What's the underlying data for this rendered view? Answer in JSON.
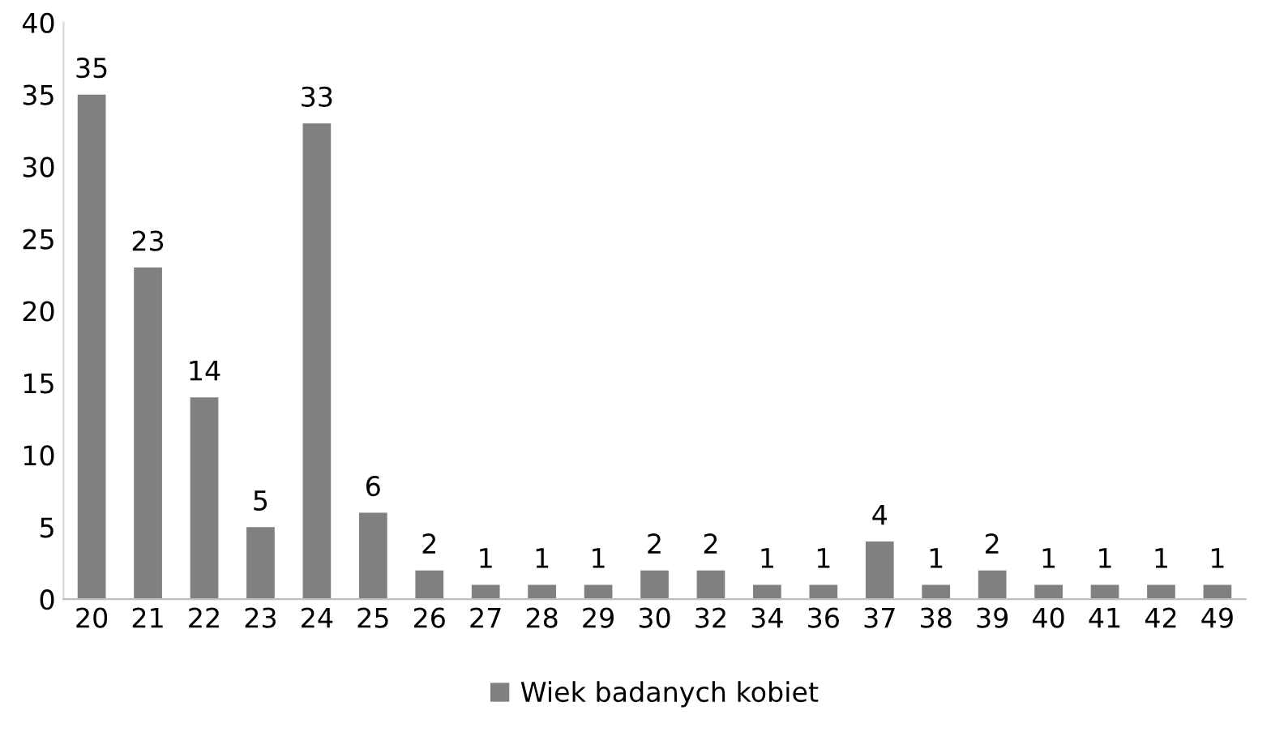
{
  "chart_data": {
    "type": "bar",
    "categories": [
      "20",
      "21",
      "22",
      "23",
      "24",
      "25",
      "26",
      "27",
      "28",
      "29",
      "30",
      "32",
      "34",
      "36",
      "37",
      "38",
      "39",
      "40",
      "41",
      "42",
      "49"
    ],
    "series": [
      {
        "name": "Wiek badanych kobiet",
        "color": "#808080",
        "values": [
          35,
          23,
          14,
          5,
          33,
          6,
          2,
          1,
          1,
          1,
          2,
          2,
          1,
          1,
          4,
          1,
          2,
          1,
          1,
          1,
          1
        ]
      }
    ],
    "ylim": [
      0,
      40
    ],
    "yticks": [
      0,
      5,
      10,
      15,
      20,
      25,
      30,
      35,
      40
    ],
    "data_labels": true,
    "legend": "bottom"
  }
}
